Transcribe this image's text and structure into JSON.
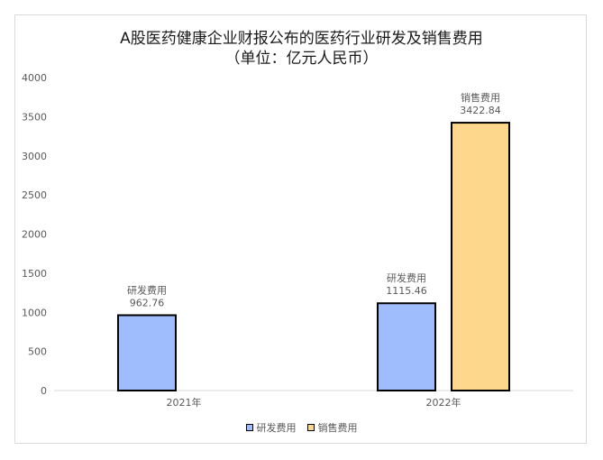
{
  "title_line1": "A股医药健康企业财报公布的医药行业研发及销售费用",
  "title_line2": "（单位：亿元人民币）",
  "chart_data": {
    "type": "bar",
    "categories": [
      "2021年",
      "2022年"
    ],
    "series": [
      {
        "name": "研发费用",
        "values": [
          962.76,
          1115.46
        ],
        "color": "#9fbdfd"
      },
      {
        "name": "销售费用",
        "values": [
          null,
          3422.84
        ],
        "color": "#fdd78b"
      }
    ],
    "ylim": [
      0,
      4000
    ],
    "yticks": [
      0,
      500,
      1000,
      1500,
      2000,
      2500,
      3000,
      3500,
      4000
    ],
    "grid": false,
    "legend": "bottom"
  }
}
